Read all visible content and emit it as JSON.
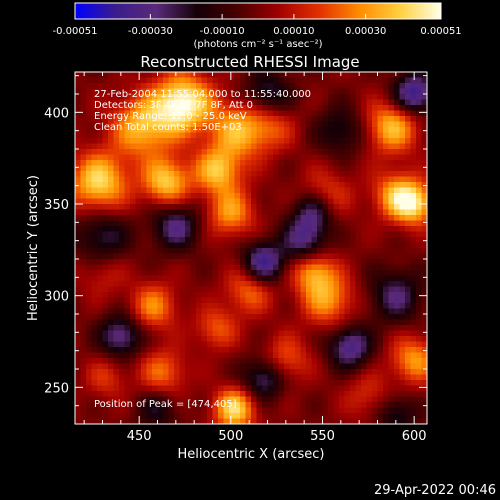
{
  "colorbar": {
    "tick_labels": [
      "-0.00051",
      "-0.00030",
      "-0.00010",
      "0.00010",
      "0.00030",
      "0.00051"
    ],
    "tick_values": [
      -0.00051,
      -0.0003,
      -0.0001,
      0.0001,
      0.0003,
      0.00051
    ],
    "range": [
      -0.00051,
      0.00051
    ],
    "unit_label": "(photons cm⁻² s⁻¹ asec⁻²)",
    "colormap": [
      "#0000ff",
      "#3b1c8c",
      "#5a2a7a",
      "#140008",
      "#4a0000",
      "#a00000",
      "#e23000",
      "#ff8c00",
      "#ffd040",
      "#ffffe8"
    ]
  },
  "annotations": {
    "time": "27-Feb-2004 11:55:04.000 to 11:55:40.000",
    "detectors": "Detectors: 3F 4F 6F 7F 8F, Att 0",
    "energy": "Energy Range: 12.0 - 25.0 keV",
    "clean": "Clean     Total counts: 1.50E+03",
    "peak": "Position of Peak = [474,405]"
  },
  "footer": {
    "date": "29-Apr-2022 00:46"
  },
  "chart_data": {
    "type": "heatmap",
    "title": "Reconstructed RHESSI Image",
    "xlabel": "Heliocentric X (arcsec)",
    "ylabel": "Heliocentric Y (arcsec)",
    "xlim": [
      415,
      607
    ],
    "ylim": [
      230,
      422
    ],
    "xticks": [
      450,
      500,
      550,
      600
    ],
    "yticks": [
      250,
      300,
      350,
      400
    ],
    "peak_position": [
      474,
      405
    ],
    "value_range": [
      -0.00051,
      0.00051
    ],
    "blobs": [
      {
        "x": 474,
        "y": 405,
        "amp": 0.00051,
        "sigma": 11
      },
      {
        "x": 452,
        "y": 392,
        "amp": 0.00036,
        "sigma": 12
      },
      {
        "x": 504,
        "y": 390,
        "amp": 0.00033,
        "sigma": 11
      },
      {
        "x": 428,
        "y": 362,
        "amp": 0.00042,
        "sigma": 11
      },
      {
        "x": 465,
        "y": 362,
        "amp": 0.00039,
        "sigma": 9
      },
      {
        "x": 493,
        "y": 368,
        "amp": 0.00036,
        "sigma": 9
      },
      {
        "x": 500,
        "y": 345,
        "amp": 0.0003,
        "sigma": 9
      },
      {
        "x": 522,
        "y": 392,
        "amp": 0.00018,
        "sigma": 9
      },
      {
        "x": 588,
        "y": 392,
        "amp": 0.00036,
        "sigma": 10
      },
      {
        "x": 590,
        "y": 355,
        "amp": 0.0003,
        "sigma": 9
      },
      {
        "x": 600,
        "y": 350,
        "amp": 0.00039,
        "sigma": 8
      },
      {
        "x": 552,
        "y": 355,
        "amp": 0.00018,
        "sigma": 10
      },
      {
        "x": 545,
        "y": 313,
        "amp": 0.0003,
        "sigma": 8
      },
      {
        "x": 553,
        "y": 298,
        "amp": 0.0003,
        "sigma": 10
      },
      {
        "x": 510,
        "y": 303,
        "amp": 0.00024,
        "sigma": 9
      },
      {
        "x": 458,
        "y": 294,
        "amp": 0.00027,
        "sigma": 9
      },
      {
        "x": 492,
        "y": 282,
        "amp": 0.00021,
        "sigma": 8
      },
      {
        "x": 430,
        "y": 312,
        "amp": 0.00012,
        "sigma": 9
      },
      {
        "x": 463,
        "y": 258,
        "amp": 0.00024,
        "sigma": 9
      },
      {
        "x": 530,
        "y": 265,
        "amp": 0.00021,
        "sigma": 9
      },
      {
        "x": 600,
        "y": 265,
        "amp": 0.0003,
        "sigma": 9
      },
      {
        "x": 502,
        "y": 238,
        "amp": 0.00042,
        "sigma": 8
      },
      {
        "x": 432,
        "y": 255,
        "amp": 0.00015,
        "sigma": 8
      },
      {
        "x": 575,
        "y": 245,
        "amp": 0.00015,
        "sigma": 9
      },
      {
        "x": 470,
        "y": 338,
        "amp": -0.0003,
        "sigma": 9
      },
      {
        "x": 430,
        "y": 332,
        "amp": -0.00024,
        "sigma": 10
      },
      {
        "x": 545,
        "y": 345,
        "amp": -0.0003,
        "sigma": 8
      },
      {
        "x": 600,
        "y": 410,
        "amp": -0.00042,
        "sigma": 8
      },
      {
        "x": 518,
        "y": 318,
        "amp": -0.00039,
        "sigma": 8
      },
      {
        "x": 540,
        "y": 330,
        "amp": -0.0003,
        "sigma": 8
      },
      {
        "x": 440,
        "y": 278,
        "amp": -0.00033,
        "sigma": 8
      },
      {
        "x": 565,
        "y": 272,
        "amp": -0.00036,
        "sigma": 8
      },
      {
        "x": 518,
        "y": 255,
        "amp": -0.0003,
        "sigma": 8
      },
      {
        "x": 460,
        "y": 238,
        "amp": -0.00018,
        "sigma": 8
      },
      {
        "x": 590,
        "y": 300,
        "amp": -0.00027,
        "sigma": 10
      },
      {
        "x": 520,
        "y": 410,
        "amp": -0.00024,
        "sigma": 9
      },
      {
        "x": 560,
        "y": 390,
        "amp": -0.00021,
        "sigma": 9
      },
      {
        "x": 590,
        "y": 235,
        "amp": -0.00021,
        "sigma": 8
      }
    ]
  }
}
